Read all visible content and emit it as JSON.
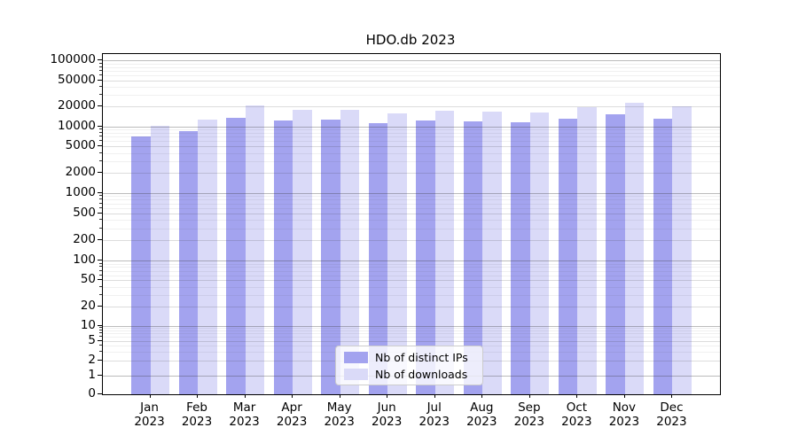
{
  "chart_data": {
    "type": "bar",
    "title": "HDO.db 2023",
    "categories": [
      "Jan",
      "Feb",
      "Mar",
      "Apr",
      "May",
      "Jun",
      "Jul",
      "Aug",
      "Sep",
      "Oct",
      "Nov",
      "Dec"
    ],
    "year_label": "2023",
    "series": [
      {
        "name": "Nb of distinct IPs",
        "color": "#a3a3ef",
        "values": [
          7100,
          8600,
          13600,
          12300,
          12500,
          11100,
          12300,
          11900,
          11700,
          13000,
          15300,
          12900
        ]
      },
      {
        "name": "Nb of downloads",
        "color": "#dadaf8",
        "values": [
          10300,
          12500,
          20600,
          17700,
          18000,
          15900,
          17300,
          16900,
          16400,
          19800,
          22800,
          20000
        ]
      }
    ],
    "yscale": "log with zero baseline",
    "ylim": [
      0,
      130000
    ],
    "y_tick_labels": [
      "100000",
      "50000",
      "20000",
      "10000",
      "5000",
      "2000",
      "1000",
      "500",
      "200",
      "100",
      "50",
      "20",
      "10",
      "5",
      "2",
      "1",
      "0"
    ],
    "grid": true,
    "legend_position": "lower center"
  },
  "colors": {
    "background": "#ffffff",
    "axis": "#000000",
    "grid_minor": "#ebebeb",
    "grid_major": "#c9c9c9"
  }
}
